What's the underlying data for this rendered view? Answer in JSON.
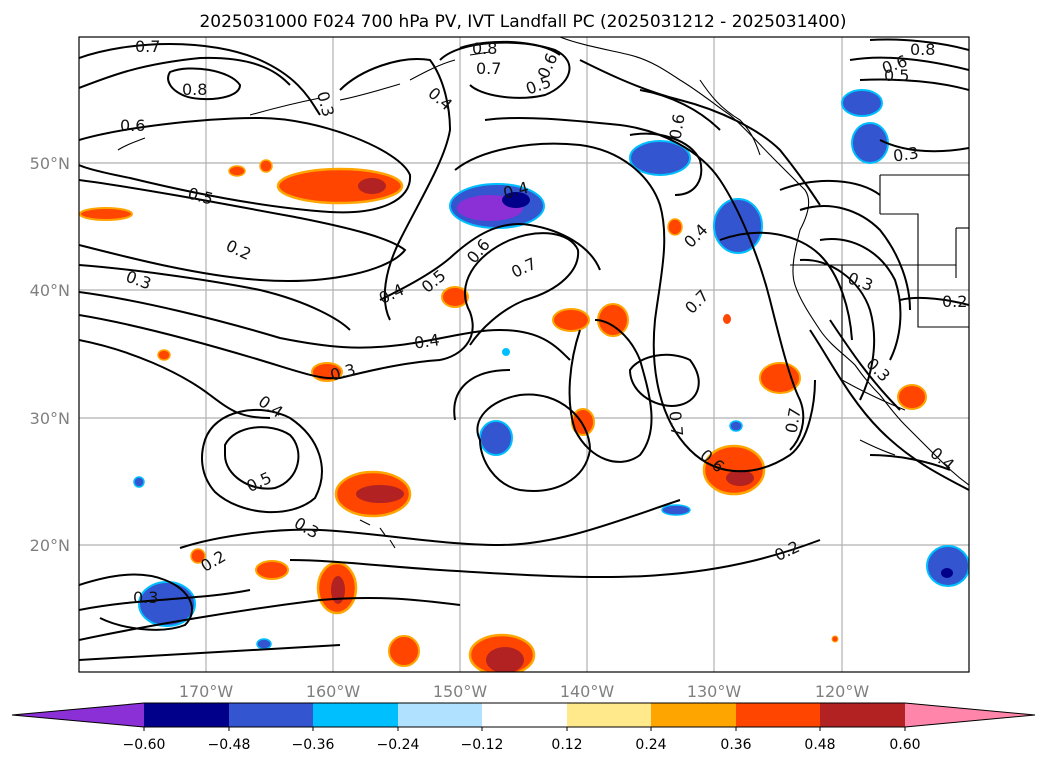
{
  "title": "2025031000 F024 700 hPa PV, IVT Landfall PC (2025031212 - 2025031400)",
  "map": {
    "lon_labels": [
      "170°W",
      "160°W",
      "150°W",
      "140°W",
      "130°W",
      "120°W"
    ],
    "lat_labels": [
      "50°N",
      "40°N",
      "30°N",
      "20°N"
    ],
    "contour_labels": [
      "0.7",
      "0.8",
      "0.8",
      "0.7",
      "0.6",
      "0.5",
      "0.6",
      "0.8",
      "0.5",
      "0.4",
      "0.3",
      "0.6",
      "0.5",
      "0.2",
      "0.3",
      "0.4",
      "0.5",
      "0.6",
      "0.7",
      "0.4",
      "0.4",
      "0.3",
      "0.4",
      "0.5",
      "0.3",
      "0.2",
      "0.3",
      "0.6",
      "0.7",
      "0.7",
      "0.6",
      "0.7",
      "0.3",
      "0.2",
      "0.3",
      "0.3",
      "0.4",
      "0.2",
      "0.4"
    ]
  },
  "colorbar": {
    "ticks": [
      "−0.60",
      "−0.48",
      "−0.36",
      "−0.24",
      "−0.12",
      "0.12",
      "0.24",
      "0.36",
      "0.48",
      "0.60"
    ],
    "colors": [
      "#8b2fd6",
      "#00008b",
      "#3455d0",
      "#00bfff",
      "#b0e2ff",
      "#ffffff",
      "#ffe98a",
      "#ffa500",
      "#ff4500",
      "#b22222",
      "#ff85aa"
    ]
  },
  "chart_data": {
    "type": "map",
    "title": "2025031000 F024 700 hPa PV, IVT Landfall PC (2025031212 - 2025031400)",
    "x_ticks": [
      "170°W",
      "160°W",
      "150°W",
      "140°W",
      "130°W",
      "120°W"
    ],
    "y_ticks": [
      "50°N",
      "40°N",
      "30°N",
      "20°N"
    ],
    "colorbar_ticks": [
      -0.6,
      -0.48,
      -0.36,
      -0.24,
      -0.12,
      0.12,
      0.24,
      0.36,
      0.48,
      0.6
    ],
    "grid": true
  }
}
